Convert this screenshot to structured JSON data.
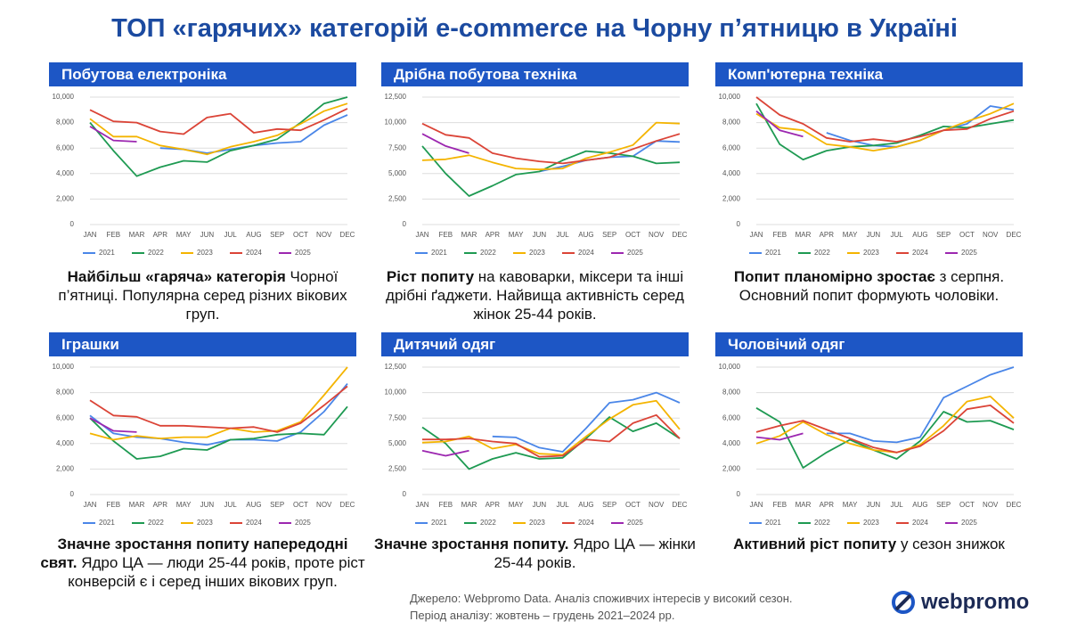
{
  "header": {
    "title": "ТОП «гарячих» категорій e-commerce на Чорну п’ятницю в Україні"
  },
  "chart_data": [
    {
      "type": "line",
      "title": "Побутова електроніка",
      "categories": [
        "JAN",
        "FEB",
        "MAR",
        "APR",
        "MAY",
        "JUN",
        "JUL",
        "AUG",
        "SEP",
        "OCT",
        "NOV",
        "DEC"
      ],
      "ylim": [
        0,
        10000
      ],
      "yticks": [
        0,
        {
          "value": 2000,
          "label": "2,000"
        },
        {
          "value": 4000,
          "label": "4,000"
        },
        {
          "value": 6000,
          "label": "6,000"
        },
        {
          "value": 8000,
          "label": "8,000"
        },
        {
          "value": 10000,
          "label": "10,000"
        }
      ],
      "grid": true,
      "series": [
        {
          "name": "2021",
          "color": "#4a86e8",
          "values": [
            null,
            null,
            null,
            6000,
            5900,
            5600,
            5900,
            6200,
            6400,
            6500,
            7800,
            8600
          ]
        },
        {
          "name": "2022",
          "color": "#1e9a52",
          "values": [
            8000,
            5800,
            3800,
            4500,
            5000,
            4900,
            5800,
            6200,
            6700,
            8000,
            9500,
            10000
          ]
        },
        {
          "name": "2023",
          "color": "#f4b400",
          "values": [
            8300,
            6900,
            6900,
            6200,
            5900,
            5500,
            6100,
            6500,
            7000,
            7900,
            8900,
            9500
          ]
        },
        {
          "name": "2024",
          "color": "#db4437",
          "values": [
            9000,
            8100,
            8000,
            7300,
            7100,
            8400,
            8700,
            7200,
            7500,
            7400,
            8200,
            9100
          ]
        },
        {
          "name": "2025",
          "color": "#9c27b0",
          "values": [
            7700,
            6600,
            6500,
            null,
            null,
            null,
            null,
            null,
            null,
            null,
            null,
            null
          ]
        }
      ]
    },
    {
      "type": "line",
      "title": "Дрібна побутова техніка",
      "categories": [
        "JAN",
        "FEB",
        "MAR",
        "APR",
        "MAY",
        "JUN",
        "JUL",
        "AUG",
        "SEP",
        "OCT",
        "NOV",
        "DEC"
      ],
      "ylim": [
        0,
        12500
      ],
      "yticks": [
        0,
        {
          "value": 2500,
          "label": "2,500"
        },
        {
          "value": 5000,
          "label": "5,000"
        },
        {
          "value": 7500,
          "label": "7,500"
        },
        {
          "value": 10000,
          "label": "10,000"
        },
        {
          "value": 12500,
          "label": "12,500"
        }
      ],
      "grid": true,
      "series": [
        {
          "name": "2021",
          "color": "#4a86e8",
          "values": [
            null,
            null,
            null,
            null,
            null,
            5200,
            5700,
            6300,
            6600,
            6700,
            8200,
            8100
          ]
        },
        {
          "name": "2022",
          "color": "#1e9a52",
          "values": [
            7700,
            5000,
            2800,
            3800,
            4900,
            5200,
            6300,
            7200,
            7000,
            6700,
            6000,
            6100
          ]
        },
        {
          "name": "2023",
          "color": "#f4b400",
          "values": [
            6300,
            6400,
            6800,
            6100,
            5500,
            5400,
            5500,
            6500,
            7100,
            7800,
            10000,
            9900
          ]
        },
        {
          "name": "2024",
          "color": "#db4437",
          "values": [
            9900,
            8800,
            8500,
            7000,
            6500,
            6200,
            6000,
            6300,
            6600,
            7400,
            8200,
            8900
          ]
        },
        {
          "name": "2025",
          "color": "#9c27b0",
          "values": [
            8900,
            7700,
            7000,
            null,
            null,
            null,
            null,
            null,
            null,
            null,
            null,
            null
          ]
        }
      ]
    },
    {
      "type": "line",
      "title": "Комп'ютерна техніка",
      "categories": [
        "JAN",
        "FEB",
        "MAR",
        "APR",
        "MAY",
        "JUN",
        "JUL",
        "AUG",
        "SEP",
        "OCT",
        "NOV",
        "DEC"
      ],
      "ylim": [
        0,
        10000
      ],
      "yticks": [
        0,
        {
          "value": 2000,
          "label": "2,000"
        },
        {
          "value": 4000,
          "label": "4,000"
        },
        {
          "value": 6000,
          "label": "6,000"
        },
        {
          "value": 8000,
          "label": "8,000"
        },
        {
          "value": 10000,
          "label": "10,000"
        }
      ],
      "grid": true,
      "series": [
        {
          "name": "2021",
          "color": "#4a86e8",
          "values": [
            null,
            null,
            null,
            7200,
            6600,
            6200,
            6100,
            6600,
            7400,
            7900,
            9300,
            9000
          ]
        },
        {
          "name": "2022",
          "color": "#1e9a52",
          "values": [
            9500,
            6300,
            5100,
            5800,
            6100,
            6200,
            6400,
            7000,
            7700,
            7600,
            7900,
            8200
          ]
        },
        {
          "name": "2023",
          "color": "#f4b400",
          "values": [
            8700,
            7600,
            7400,
            6300,
            6100,
            5800,
            6100,
            6600,
            7400,
            8100,
            8700,
            9500
          ]
        },
        {
          "name": "2024",
          "color": "#db4437",
          "values": [
            10000,
            8600,
            7900,
            6800,
            6500,
            6700,
            6500,
            6900,
            7400,
            7500,
            8300,
            8900
          ]
        },
        {
          "name": "2025",
          "color": "#9c27b0",
          "values": [
            8900,
            7400,
            6900,
            null,
            null,
            null,
            null,
            null,
            null,
            null,
            null,
            null
          ]
        }
      ]
    },
    {
      "type": "line",
      "title": "Іграшки",
      "categories": [
        "JAN",
        "FEB",
        "MAR",
        "APR",
        "MAY",
        "JUN",
        "JUL",
        "AUG",
        "SEP",
        "OCT",
        "NOV",
        "DEC"
      ],
      "ylim": [
        0,
        10000
      ],
      "yticks": [
        0,
        {
          "value": 2000,
          "label": "2,000"
        },
        {
          "value": 4000,
          "label": "4,000"
        },
        {
          "value": 6000,
          "label": "6,000"
        },
        {
          "value": 8000,
          "label": "8,000"
        },
        {
          "value": 10000,
          "label": "10,000"
        }
      ],
      "grid": true,
      "series": [
        {
          "name": "2021",
          "color": "#4a86e8",
          "values": [
            6200,
            4800,
            4500,
            4400,
            4100,
            3900,
            4300,
            4300,
            4200,
            4900,
            6500,
            8700
          ]
        },
        {
          "name": "2022",
          "color": "#1e9a52",
          "values": [
            6000,
            4200,
            2800,
            3000,
            3600,
            3500,
            4300,
            4400,
            4700,
            4800,
            4700,
            6900
          ]
        },
        {
          "name": "2023",
          "color": "#f4b400",
          "values": [
            4800,
            4300,
            4600,
            4400,
            4500,
            4500,
            5200,
            4900,
            5000,
            5700,
            7800,
            10000
          ]
        },
        {
          "name": "2024",
          "color": "#db4437",
          "values": [
            7400,
            6200,
            6100,
            5400,
            5400,
            5300,
            5200,
            5300,
            4900,
            5600,
            7000,
            8500
          ]
        },
        {
          "name": "2025",
          "color": "#9c27b0",
          "values": [
            6000,
            5000,
            4900,
            null,
            null,
            null,
            null,
            null,
            null,
            null,
            null,
            null
          ]
        }
      ]
    },
    {
      "type": "line",
      "title": "Дитячий одяг",
      "categories": [
        "JAN",
        "FEB",
        "MAR",
        "APR",
        "MAY",
        "JUN",
        "JUL",
        "AUG",
        "SEP",
        "OCT",
        "NOV",
        "DEC"
      ],
      "ylim": [
        0,
        12500
      ],
      "yticks": [
        0,
        {
          "value": 2500,
          "label": "2,500"
        },
        {
          "value": 5000,
          "label": "5,000"
        },
        {
          "value": 7500,
          "label": "7,500"
        },
        {
          "value": 10000,
          "label": "10,000"
        },
        {
          "value": 12500,
          "label": "12,500"
        }
      ],
      "grid": true,
      "series": [
        {
          "name": "2021",
          "color": "#4a86e8",
          "values": [
            null,
            null,
            null,
            5700,
            5600,
            4600,
            4200,
            6500,
            9000,
            9300,
            10000,
            9000
          ]
        },
        {
          "name": "2022",
          "color": "#1e9a52",
          "values": [
            6600,
            5000,
            2500,
            3500,
            4100,
            3500,
            3600,
            5500,
            7600,
            6200,
            7000,
            5500
          ]
        },
        {
          "name": "2023",
          "color": "#f4b400",
          "values": [
            5100,
            5200,
            5700,
            4500,
            4900,
            4000,
            3900,
            5700,
            7400,
            8800,
            9200,
            6400
          ]
        },
        {
          "name": "2024",
          "color": "#db4437",
          "values": [
            5400,
            5400,
            5500,
            5200,
            5000,
            3700,
            3800,
            5400,
            5200,
            7000,
            7800,
            5500
          ]
        },
        {
          "name": "2025",
          "color": "#9c27b0",
          "values": [
            4300,
            3800,
            4300,
            null,
            null,
            null,
            null,
            null,
            null,
            null,
            null,
            null
          ]
        }
      ]
    },
    {
      "type": "line",
      "title": "Чоловічий одяг",
      "categories": [
        "JAN",
        "FEB",
        "MAR",
        "APR",
        "MAY",
        "JUN",
        "JUL",
        "AUG",
        "SEP",
        "OCT",
        "NOV",
        "DEC"
      ],
      "ylim": [
        0,
        10000
      ],
      "yticks": [
        0,
        {
          "value": 2000,
          "label": "2,000"
        },
        {
          "value": 4000,
          "label": "4,000"
        },
        {
          "value": 6000,
          "label": "6,000"
        },
        {
          "value": 8000,
          "label": "8,000"
        },
        {
          "value": 10000,
          "label": "10,000"
        }
      ],
      "grid": true,
      "series": [
        {
          "name": "2021",
          "color": "#4a86e8",
          "values": [
            null,
            null,
            null,
            4800,
            4800,
            4200,
            4100,
            4500,
            7600,
            8500,
            9400,
            10000
          ]
        },
        {
          "name": "2022",
          "color": "#1e9a52",
          "values": [
            6800,
            5700,
            2100,
            3300,
            4300,
            3500,
            2800,
            4200,
            6500,
            5700,
            5800,
            5100
          ]
        },
        {
          "name": "2023",
          "color": "#f4b400",
          "values": [
            4000,
            4600,
            5700,
            4700,
            4000,
            3500,
            3300,
            3900,
            5400,
            7300,
            7700,
            6000
          ]
        },
        {
          "name": "2024",
          "color": "#db4437",
          "values": [
            4900,
            5400,
            5800,
            5100,
            4400,
            3700,
            3300,
            3800,
            5000,
            6700,
            7000,
            5600
          ]
        },
        {
          "name": "2025",
          "color": "#9c27b0",
          "values": [
            4500,
            4300,
            4800,
            null,
            null,
            null,
            null,
            null,
            null,
            null,
            null,
            null
          ]
        }
      ]
    }
  ],
  "captions": [
    {
      "bold": "Найбільш «гаряча» категорія",
      "text": "Чорної п’ятниці. Популярна серед різних вікових груп."
    },
    {
      "bold": "Ріст попиту",
      "text": "на кавоварки, міксери та інші дрібні ґаджети. Найвища активність серед жінок 25-44 років."
    },
    {
      "bold": "Попит планомірно зростає",
      "text": "з серпня. Основний попит формують чоловіки."
    },
    {
      "bold": "Значне зростання попиту напередодні свят.",
      "text": "Ядро ЦА — люди 25-44 років, проте ріст конверсій є і серед інших вікових груп."
    },
    {
      "bold": "Значне зростання попиту.",
      "text": "Ядро ЦА — жінки 25-44 років."
    },
    {
      "bold": "Активний ріст попиту",
      "text": "у сезон знижок"
    }
  ],
  "source": [
    "Джерело: Webpromo Data. Аналіз споживчих інтересів у високий сезон.",
    "Період аналізу: жовтень – грудень 2021–2024 рр."
  ],
  "logo": "webpromo"
}
